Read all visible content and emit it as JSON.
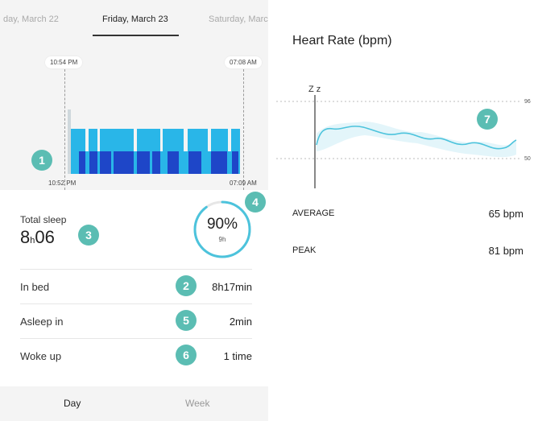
{
  "dates": {
    "prev": "day, March 22",
    "current": "Friday, March 23",
    "next": "Saturday, Marc"
  },
  "chart": {
    "bed_time": "10:54 PM",
    "wake_time": "07:08 AM",
    "sleep_start": "10:52 PM",
    "sleep_end": "07:09 AM",
    "colors": {
      "light": "#29b6e8",
      "deep": "#1e46c8",
      "awake": "#cfd8dc"
    }
  },
  "summary": {
    "total_label": "Total sleep",
    "total_hours": "8",
    "total_h_unit": "h",
    "total_minutes": "06",
    "efficiency": "90%",
    "efficiency_value": 0.9,
    "goal": "9h"
  },
  "rows": [
    {
      "label": "In bed",
      "value": "8h17min",
      "badge": "2"
    },
    {
      "label": "Asleep in",
      "value": "2min",
      "badge": "5"
    },
    {
      "label": "Woke up",
      "value": "1 time",
      "badge": "6"
    }
  ],
  "badges": {
    "chart": "1",
    "total": "3",
    "ring": "4",
    "heart": "7"
  },
  "tabs": {
    "day": "Day",
    "week": "Week"
  },
  "heart": {
    "title": "Heart Rate (bpm)",
    "sleep_icon": "Z z",
    "y_max_label": "96",
    "y_min_label": "50",
    "average_label": "AVERAGE",
    "average_value": "65 bpm",
    "peak_label": "PEAK",
    "peak_value": "81 bpm",
    "line_color": "#4cc3dc"
  }
}
